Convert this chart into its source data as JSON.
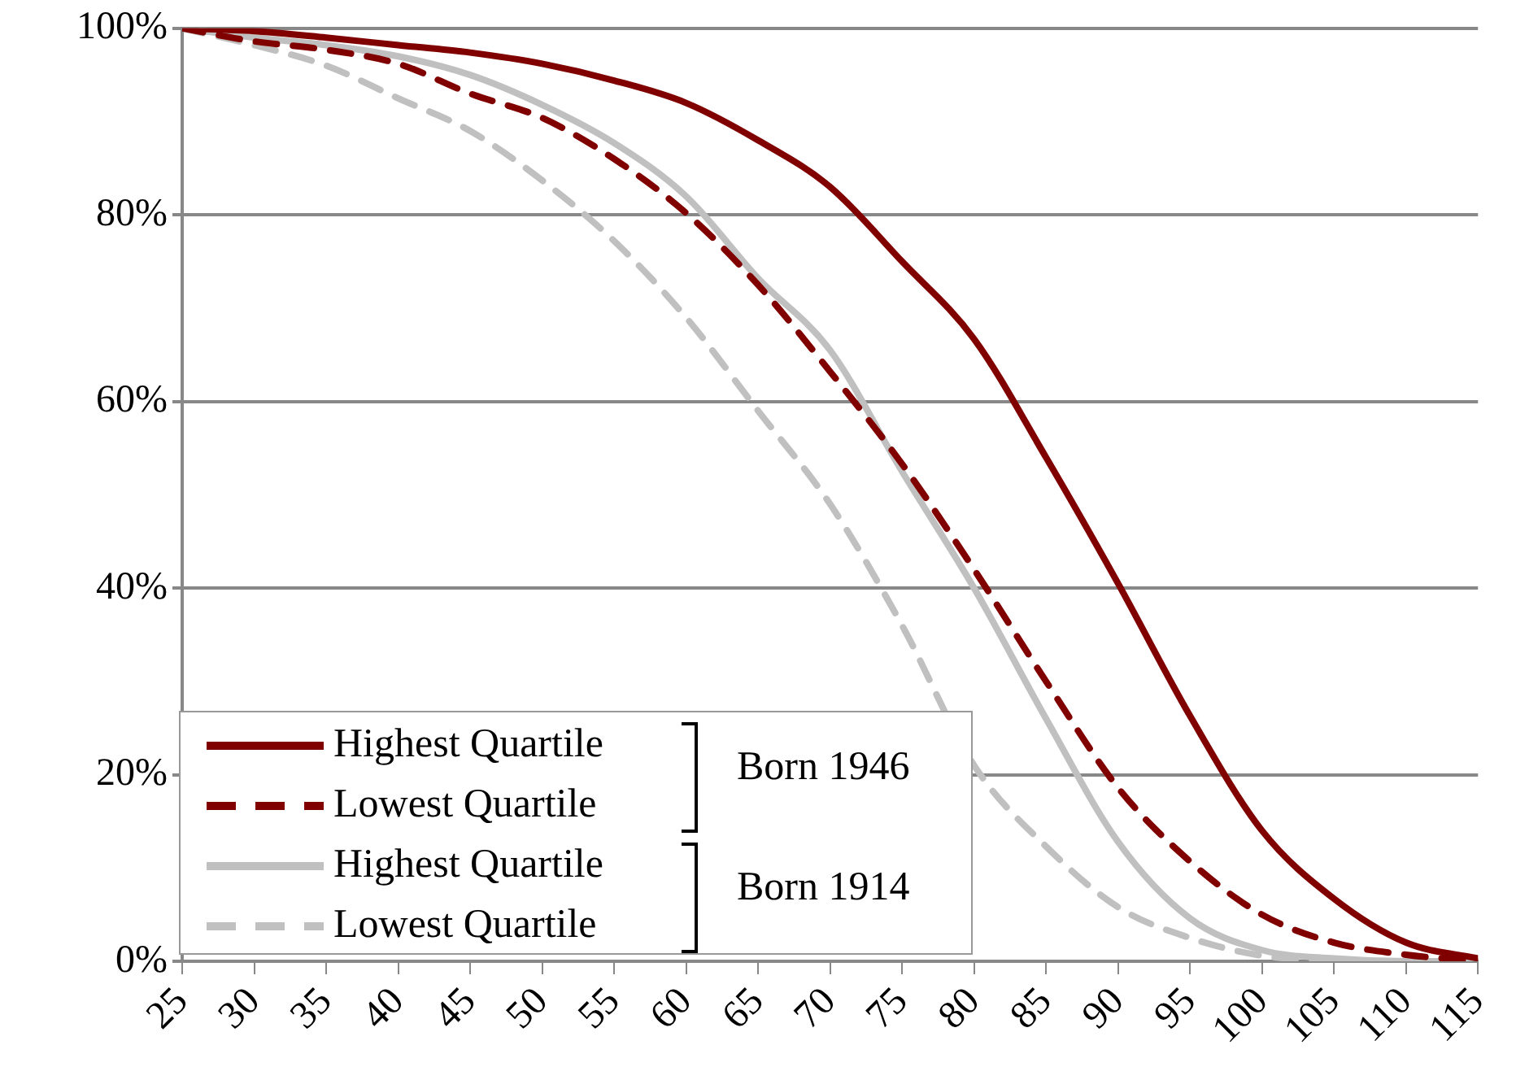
{
  "chart_data": {
    "type": "line",
    "x": [
      25,
      30,
      35,
      40,
      45,
      50,
      55,
      60,
      65,
      70,
      75,
      80,
      85,
      90,
      95,
      100,
      105,
      110,
      115
    ],
    "series": [
      {
        "name": "Highest Quartile",
        "color": "#800000",
        "line_style": "solid",
        "values": [
          100,
          99.7,
          99,
          98.2,
          97.4,
          96.2,
          94.4,
          92,
          88,
          83,
          75,
          66.7,
          54,
          40.5,
          26.3,
          14,
          6.7,
          2,
          0.3
        ]
      },
      {
        "name": "Lowest Quartile",
        "color": "#800000",
        "line_style": "dashed",
        "values": [
          100,
          98.6,
          97.7,
          96.2,
          93,
          90.4,
          86,
          80.2,
          72.5,
          63.2,
          53.3,
          42,
          30,
          18.6,
          10.7,
          5,
          2,
          0.7,
          0
        ]
      },
      {
        "name": "Highest Quartile",
        "color": "#c0c0c0",
        "line_style": "solid",
        "values": [
          100,
          99,
          98.2,
          97,
          95,
          91.8,
          87.7,
          82,
          73.2,
          65.5,
          52.5,
          40,
          26,
          12.8,
          4.6,
          1.2,
          0.3,
          0,
          0
        ]
      },
      {
        "name": "Lowest Quartile",
        "color": "#c0c0c0",
        "line_style": "dashed",
        "values": [
          100,
          98.2,
          96,
          92.5,
          89,
          83.7,
          77.2,
          69,
          59,
          49,
          36,
          21,
          12.3,
          5.8,
          2.5,
          0.6,
          0.1,
          0,
          0
        ]
      }
    ],
    "annotations": [
      "Born 1946",
      "Born 1914"
    ],
    "xlim": [
      25,
      115
    ],
    "xticks": [
      25,
      30,
      35,
      40,
      45,
      50,
      55,
      60,
      65,
      70,
      75,
      80,
      85,
      90,
      95,
      100,
      105,
      110,
      115
    ],
    "ylim": [
      0,
      100
    ],
    "yticks": [
      {
        "value": 0,
        "label": "0%"
      },
      {
        "value": 20,
        "label": "20%"
      },
      {
        "value": 40,
        "label": "40%"
      },
      {
        "value": 60,
        "label": "60%"
      },
      {
        "value": 80,
        "label": "80%"
      },
      {
        "value": 100,
        "label": "100%"
      }
    ],
    "grid": "y",
    "legend": "bottom left",
    "marker": "none"
  }
}
